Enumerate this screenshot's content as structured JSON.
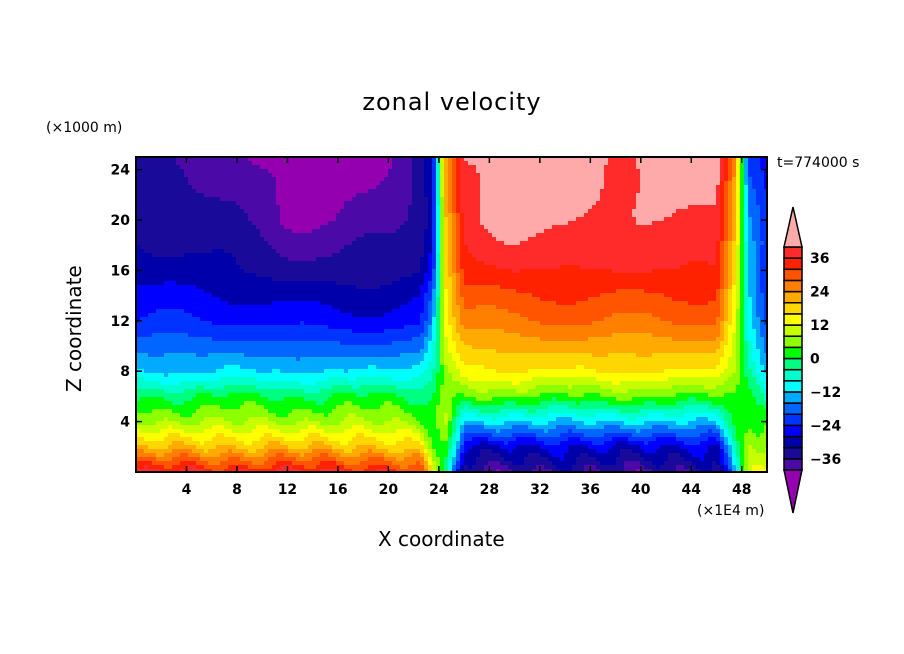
{
  "chart_data": {
    "type": "heatmap",
    "title": "zonal velocity",
    "xlabel": "X coordinate",
    "ylabel": "Z coordinate",
    "x_unit": "(×1E4 m)",
    "y_unit": "(×1000 m)",
    "annotation": "t=774000 s",
    "xlim": [
      0,
      50
    ],
    "ylim": [
      0,
      25
    ],
    "xticks": [
      "4",
      "8",
      "12",
      "16",
      "20",
      "24",
      "28",
      "32",
      "36",
      "40",
      "44",
      "48"
    ],
    "yticks": [
      "4",
      "8",
      "12",
      "16",
      "20",
      "24"
    ],
    "grid_x": [
      0,
      4,
      8,
      12,
      16,
      20,
      22.5,
      23.5,
      24.5,
      26,
      30,
      34,
      38,
      42,
      46,
      47.5,
      48.5,
      50
    ],
    "grid_z": [
      0,
      2,
      4,
      6,
      8,
      12,
      16,
      20,
      25
    ],
    "values_by_x": [
      [
        36,
        20,
        8,
        0,
        -12,
        -24,
        -30,
        -34,
        -36
      ],
      [
        36,
        20,
        8,
        0,
        -12,
        -24,
        -30,
        -34,
        -38
      ],
      [
        36,
        20,
        8,
        0,
        -12,
        -24,
        -32,
        -36,
        -38
      ],
      [
        36,
        20,
        8,
        0,
        -12,
        -26,
        -34,
        -40,
        -42
      ],
      [
        36,
        20,
        8,
        0,
        -12,
        -26,
        -34,
        -40,
        -42
      ],
      [
        36,
        20,
        8,
        0,
        -12,
        -26,
        -34,
        -38,
        -40
      ],
      [
        30,
        16,
        6,
        0,
        -10,
        -26,
        -32,
        -34,
        -36
      ],
      [
        10,
        5,
        2,
        0,
        -4,
        -16,
        -24,
        -28,
        -30
      ],
      [
        0,
        4,
        8,
        8,
        8,
        12,
        16,
        20,
        22
      ],
      [
        -36,
        -28,
        -12,
        4,
        14,
        26,
        34,
        38,
        40
      ],
      [
        -36,
        -28,
        -12,
        4,
        16,
        28,
        36,
        42,
        44
      ],
      [
        -36,
        -28,
        -12,
        4,
        16,
        28,
        36,
        42,
        44
      ],
      [
        -36,
        -28,
        -12,
        4,
        16,
        28,
        36,
        38,
        40
      ],
      [
        -36,
        -28,
        -12,
        4,
        16,
        28,
        36,
        40,
        44
      ],
      [
        -36,
        -28,
        -12,
        4,
        16,
        28,
        36,
        40,
        42
      ],
      [
        -10,
        -6,
        0,
        4,
        8,
        12,
        16,
        20,
        24
      ],
      [
        10,
        8,
        4,
        0,
        -4,
        -8,
        -12,
        -16,
        -20
      ],
      [
        16,
        10,
        2,
        -8,
        -14,
        -20,
        -24,
        -24,
        -24
      ]
    ],
    "levels": [
      -40,
      -36,
      -32,
      -28,
      -24,
      -20,
      -16,
      -12,
      -8,
      -4,
      0,
      4,
      8,
      12,
      16,
      20,
      24,
      28,
      32,
      36,
      40
    ],
    "colorbar": {
      "labels": [
        "36",
        "24",
        "12",
        "0",
        "−12",
        "−24",
        "−36"
      ],
      "label_values": [
        36,
        24,
        12,
        0,
        -12,
        -24,
        -36
      ]
    },
    "colors": [
      "#9400b0",
      "#4b0aa8",
      "#1a0a99",
      "#0000aa",
      "#0000ff",
      "#0033ff",
      "#0066ff",
      "#00aaff",
      "#00ffff",
      "#00ffcc",
      "#00ff80",
      "#00ff00",
      "#8cff00",
      "#c8ff00",
      "#ffff00",
      "#ffd700",
      "#ffaa00",
      "#ff7f00",
      "#ff5500",
      "#ff2200",
      "#ff2a2a",
      "#ffaaaa"
    ]
  }
}
